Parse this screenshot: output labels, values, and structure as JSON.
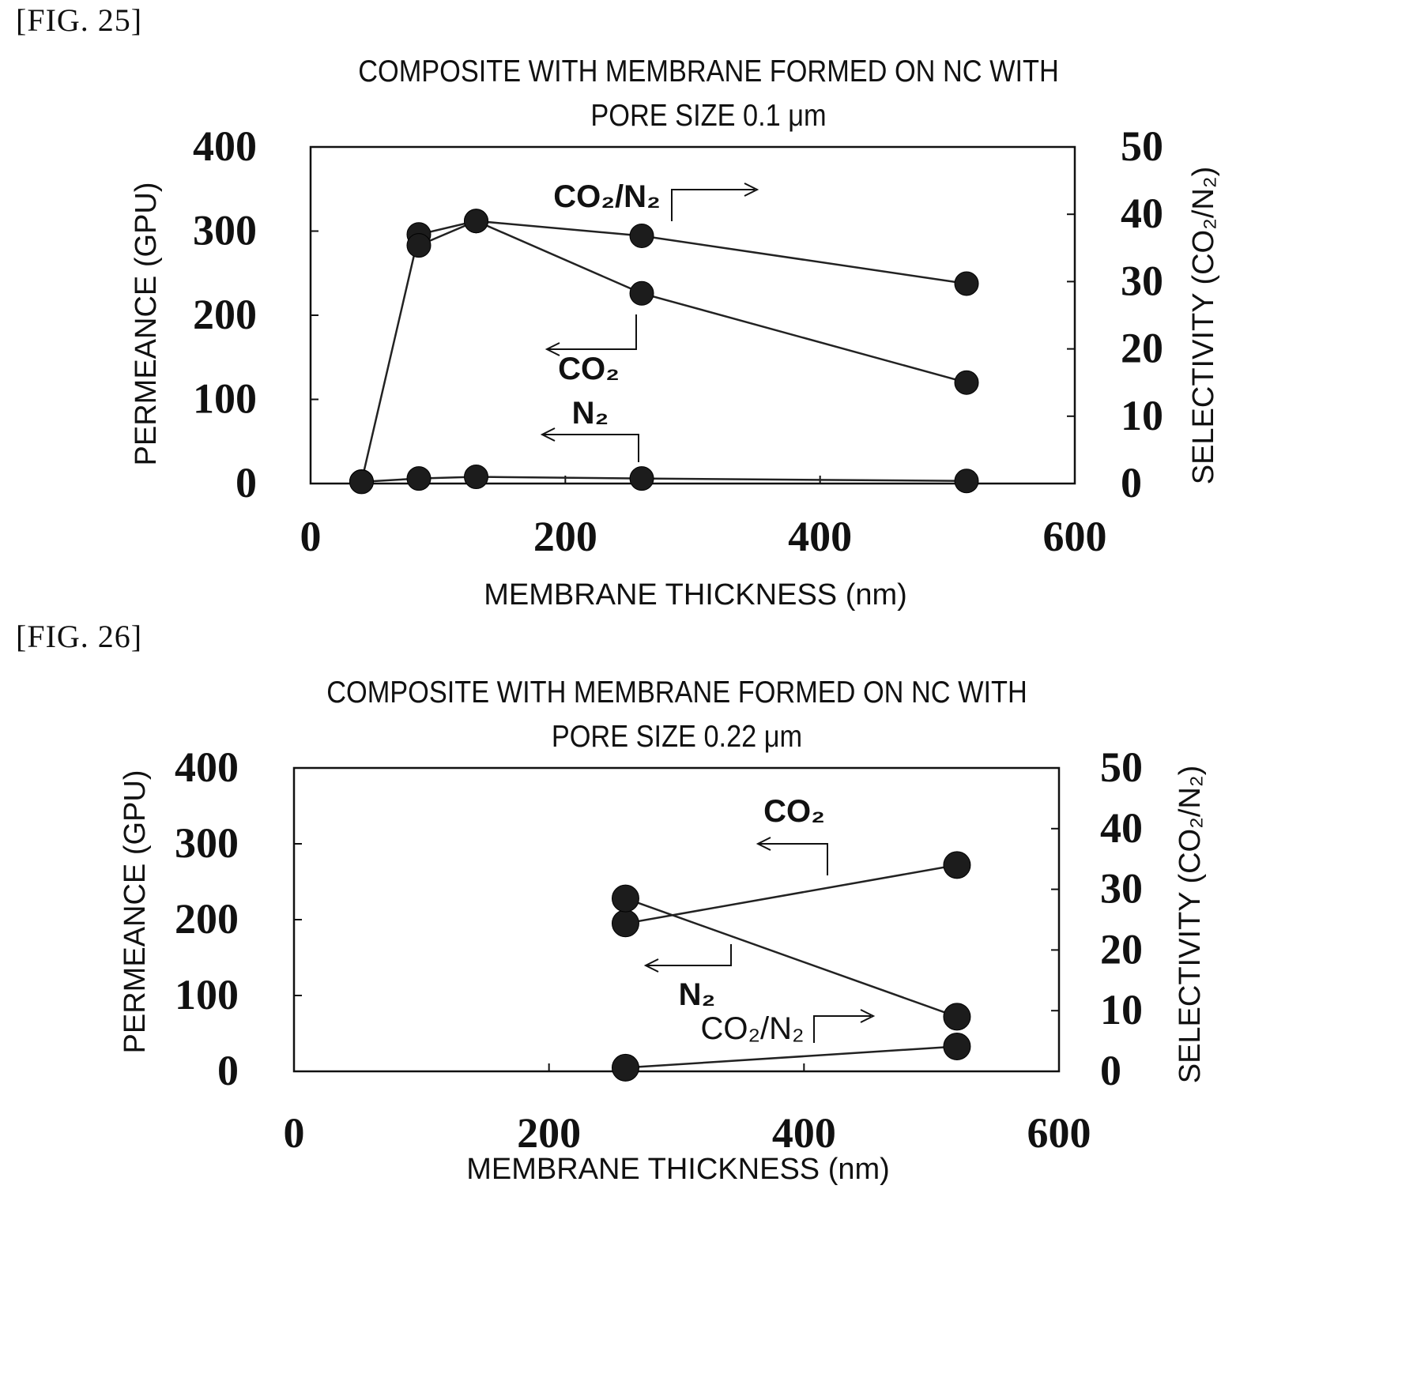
{
  "figures": [
    {
      "label": "[FIG. 25]",
      "title_line1": "COMPOSITE WITH MEMBRANE FORMED ON NC WITH",
      "title_line2": "PORE SIZE 0.1 μm",
      "xlabel": "MEMBRANE THICKNESS (nm)",
      "ylabel_left": "PERMEANCE (GPU)",
      "ylabel_right": "SELECTIVITY (CO₂/N₂)",
      "annotations": {
        "ratio": "CO₂/N₂",
        "co2": "CO₂",
        "n2": "N₂"
      }
    },
    {
      "label": "[FIG. 26]",
      "title_line1": "COMPOSITE WITH MEMBRANE FORMED ON NC WITH",
      "title_line2": "PORE SIZE 0.22 μm",
      "xlabel": "MEMBRANE THICKNESS (nm)",
      "ylabel_left": "PERMEANCE (GPU)",
      "ylabel_right": "SELECTIVITY (CO₂/N₂)",
      "annotations": {
        "ratio": "CO₂/N₂",
        "co2": "CO₂",
        "n2": "N₂"
      }
    }
  ],
  "chart_data": [
    {
      "type": "line",
      "title": "COMPOSITE WITH MEMBRANE FORMED ON NC WITH PORE SIZE 0.1 μm",
      "xlabel": "MEMBRANE THICKNESS (nm)",
      "ylabel": "PERMEANCE (GPU)",
      "y2label": "SELECTIVITY (CO₂/N₂)",
      "xlim": [
        0,
        600
      ],
      "ylim": [
        0,
        400
      ],
      "y2lim": [
        0,
        50
      ],
      "xticks": [
        "0",
        "200",
        "400",
        "600"
      ],
      "yticks": [
        "0",
        "100",
        "200",
        "300",
        "400"
      ],
      "y2ticks": [
        "0",
        "10",
        "20",
        "30",
        "40",
        "50"
      ],
      "series": [
        {
          "name": "CO₂/N₂",
          "axis": "right",
          "x": [
            40,
            85,
            130,
            260,
            515
          ],
          "y": [
            0.3,
            37,
            39,
            36.8,
            29.7
          ]
        },
        {
          "name": "CO₂",
          "axis": "left",
          "x": [
            85,
            130,
            260,
            515
          ],
          "y": [
            283,
            312,
            226,
            120
          ]
        },
        {
          "name": "N₂",
          "axis": "left",
          "x": [
            40,
            85,
            130,
            260,
            515
          ],
          "y": [
            2,
            6,
            8,
            6,
            3
          ]
        }
      ]
    },
    {
      "type": "line",
      "title": "COMPOSITE WITH MEMBRANE FORMED ON NC WITH PORE SIZE 0.22 μm",
      "xlabel": "MEMBRANE THICKNESS (nm)",
      "ylabel": "PERMEANCE (GPU)",
      "y2label": "SELECTIVITY (CO₂/N₂)",
      "xlim": [
        0,
        600
      ],
      "ylim": [
        0,
        400
      ],
      "y2lim": [
        0,
        50
      ],
      "xticks": [
        "0",
        "200",
        "400",
        "600"
      ],
      "yticks": [
        "0",
        "100",
        "200",
        "300",
        "400"
      ],
      "y2ticks": [
        "0",
        "10",
        "20",
        "30",
        "40",
        "50"
      ],
      "series": [
        {
          "name": "CO₂",
          "axis": "left",
          "x": [
            260,
            520
          ],
          "y": [
            195,
            272
          ]
        },
        {
          "name": "N₂",
          "axis": "left",
          "x": [
            260,
            520
          ],
          "y": [
            228,
            72
          ]
        },
        {
          "name": "CO₂/N₂",
          "axis": "right",
          "x": [
            260,
            520
          ],
          "y": [
            0.6,
            4.1
          ]
        }
      ]
    }
  ]
}
